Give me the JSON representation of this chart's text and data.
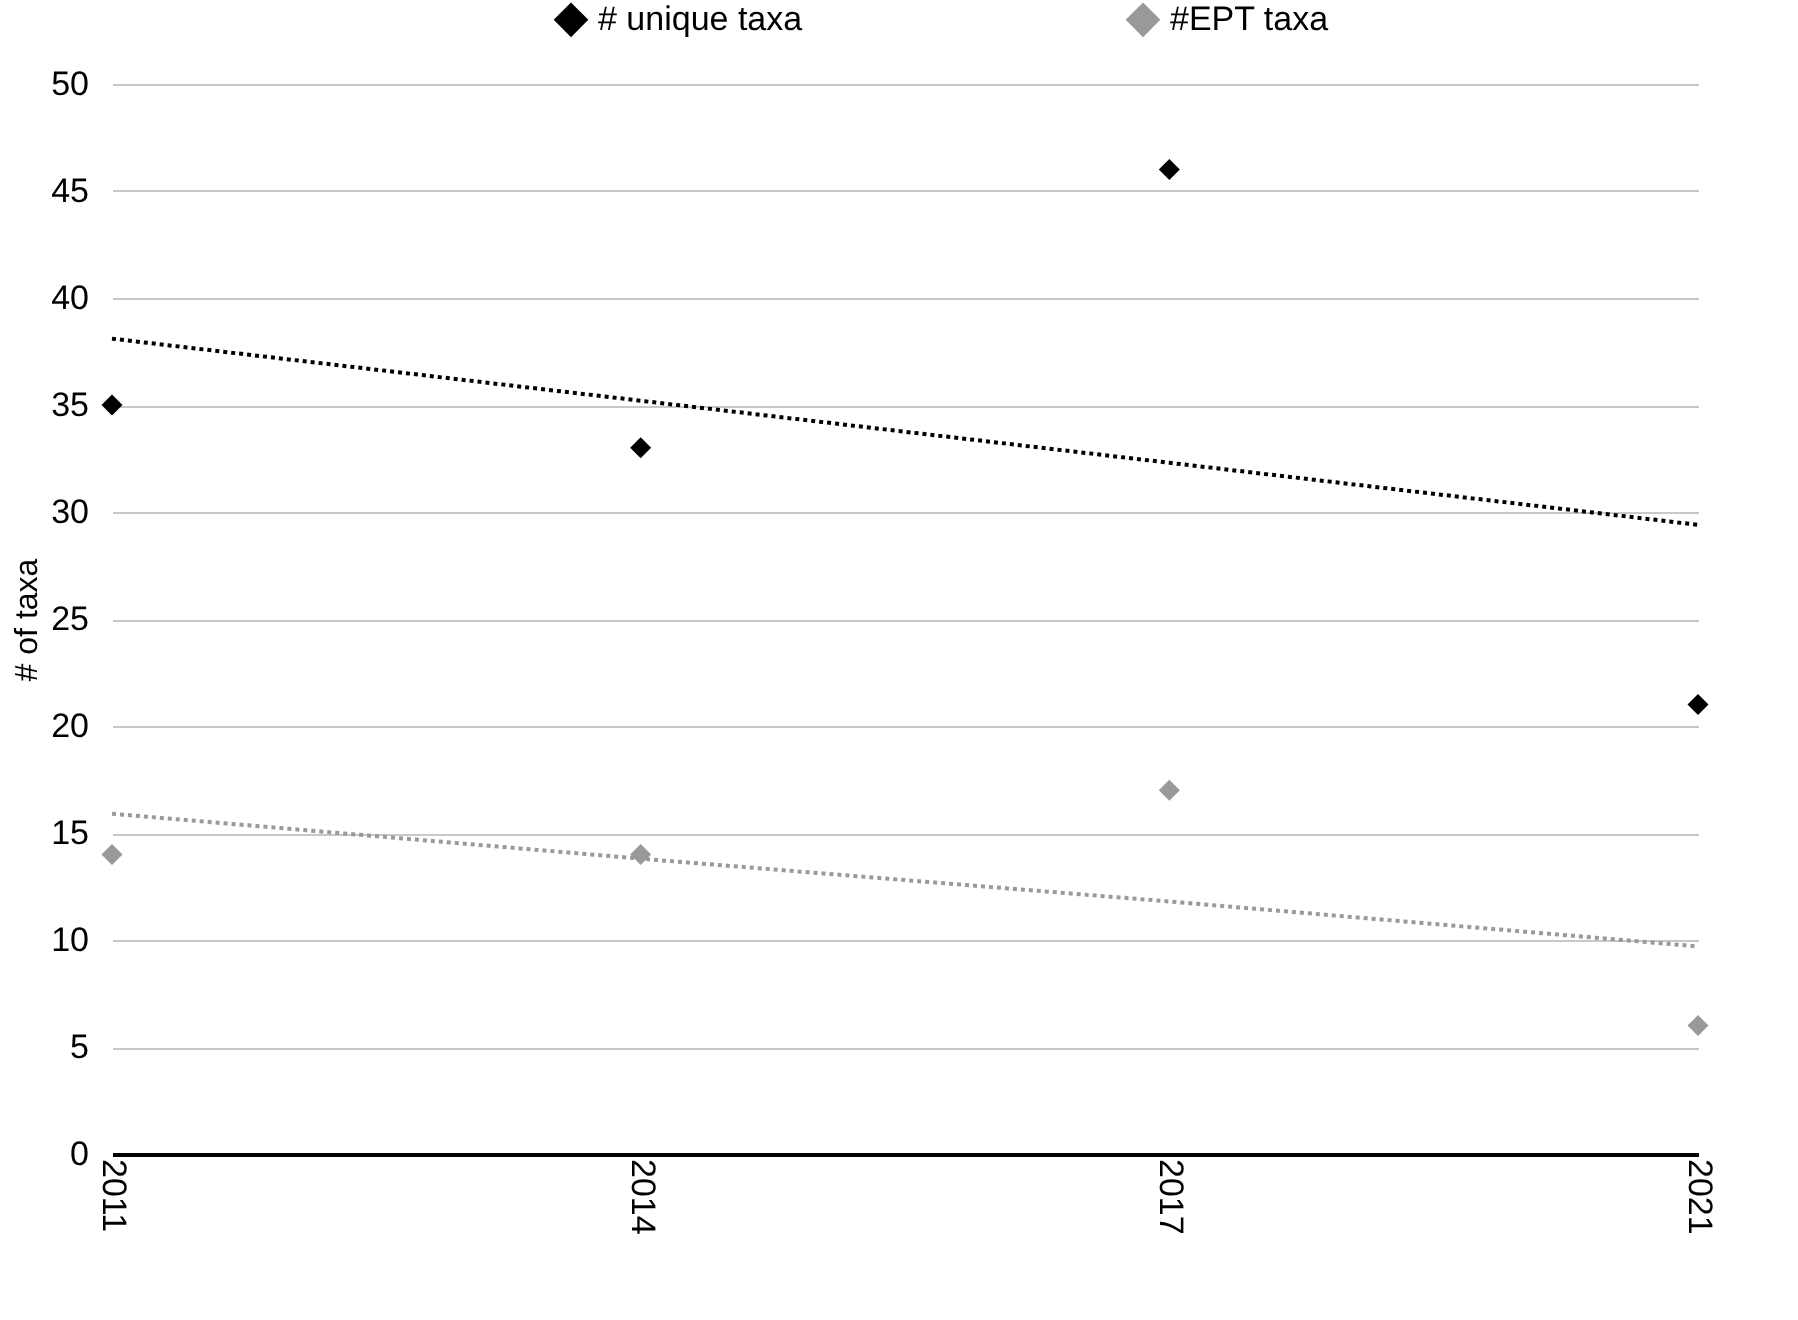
{
  "chart_data": {
    "type": "scatter",
    "ylabel": "# of taxa",
    "categories": [
      "2011",
      "2014",
      "2017",
      "2021"
    ],
    "series": [
      {
        "name": "# unique taxa",
        "marker": "diamond",
        "color": "#000000",
        "values": [
          35,
          33,
          46,
          21
        ]
      },
      {
        "name": "#EPT taxa",
        "marker": "diamond",
        "color": "#999999",
        "values": [
          14,
          14,
          17,
          6
        ]
      },
      {
        "type": "line",
        "line_style": "dotted",
        "color": "#000000",
        "values": [
          38.1,
          35.2,
          32.3,
          29.4
        ]
      },
      {
        "type": "line",
        "line_style": "dotted",
        "color": "#999999",
        "values": [
          15.9,
          13.8,
          11.8,
          9.7
        ]
      }
    ],
    "ylim": [
      0,
      50
    ],
    "yticks": [
      0,
      5,
      10,
      15,
      20,
      25,
      30,
      35,
      40,
      45,
      50
    ],
    "grid": "y",
    "legend": "top"
  }
}
